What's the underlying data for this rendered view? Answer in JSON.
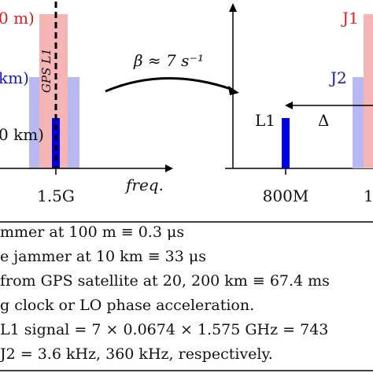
{
  "left_panel": {
    "jammer_near_label": "0 m)",
    "jammer_mid_label": "km)",
    "jammer_far_label": "0 km)",
    "gps_label": "GPS L1",
    "x_tick": "1.5G",
    "x_axis_label": "freq."
  },
  "arrow": {
    "label": "β ≈ 7 s⁻¹"
  },
  "right_panel": {
    "j1_label": "J1",
    "j2_label": "J2",
    "l1_label": "L1",
    "delta_label": "Δ",
    "x_tick_1": "800M",
    "x_tick_2": "1"
  },
  "notes": [
    "mmer at 100 m ≡ 0.3 μs",
    "e jammer at 10 km ≡ 33 μs",
    "from GPS satellite at 20, 200 km ≡ 67.4 ms",
    "g clock or LO phase acceleration.",
    " L1 signal = 7 × 0.0674 × 1.575 GHz = 743",
    " J2 = 3.6 kHz, 360 kHz, respectively."
  ],
  "colors": {
    "pink": "#f5b5b5",
    "lavender": "#b8b8f2",
    "blue": "#0000e0",
    "red_text": "#d42020",
    "blue_text": "#1a1ab0"
  }
}
